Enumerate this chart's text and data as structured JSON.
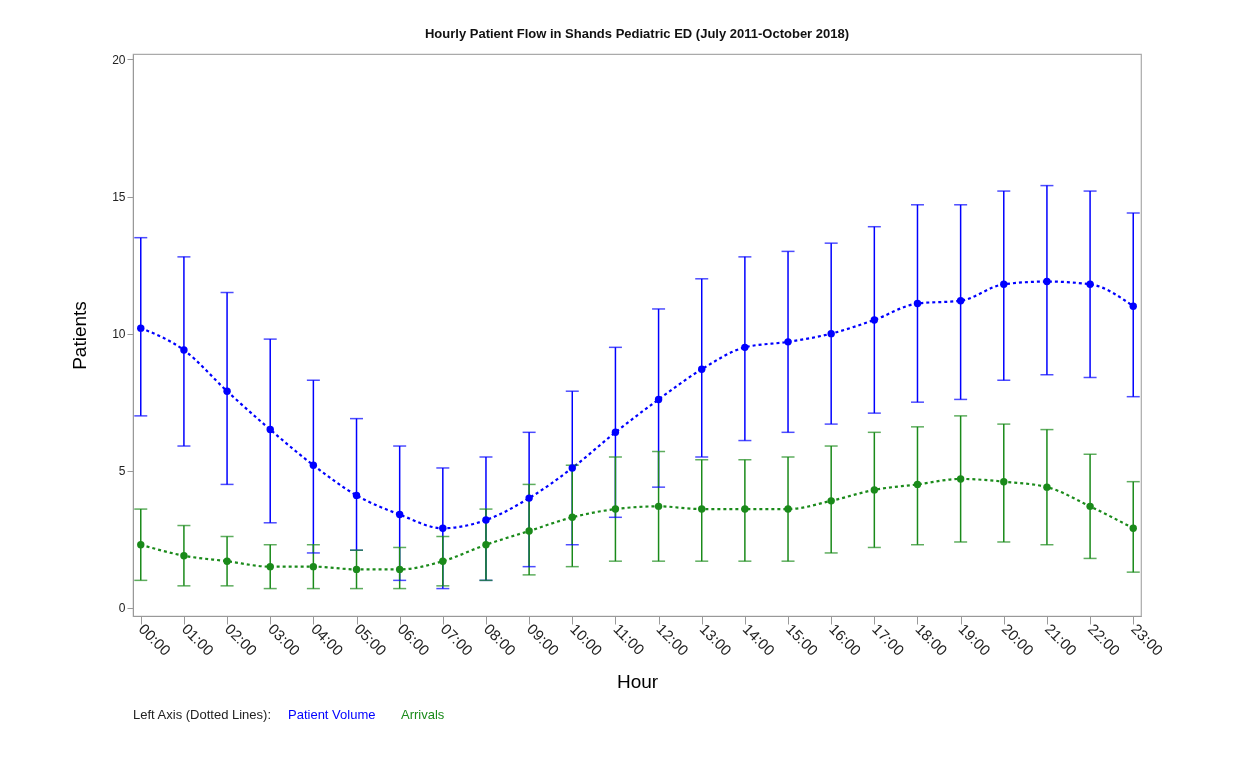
{
  "chart_data": {
    "type": "line",
    "title": "Hourly Patient Flow in Shands Pediatric ED (July 2011-October 2018)",
    "xlabel": "Hour",
    "ylabel": "Patients",
    "legend_title": "Left Axis (Dotted Lines):",
    "categories": [
      "00:00",
      "01:00",
      "02:00",
      "03:00",
      "04:00",
      "05:00",
      "06:00",
      "07:00",
      "08:00",
      "09:00",
      "10:00",
      "11:00",
      "12:00",
      "13:00",
      "14:00",
      "15:00",
      "16:00",
      "17:00",
      "18:00",
      "19:00",
      "20:00",
      "21:00",
      "22:00",
      "23:00"
    ],
    "series": [
      {
        "name": "Patient Volume",
        "color": "#0000ff",
        "values": [
          10.2,
          9.4,
          7.9,
          6.5,
          5.2,
          4.1,
          3.4,
          2.9,
          3.2,
          4.0,
          5.1,
          6.4,
          7.6,
          8.7,
          9.5,
          9.7,
          10.0,
          10.5,
          11.1,
          11.2,
          11.8,
          11.9,
          11.8,
          11.0
        ],
        "errors": [
          [
            7.0,
            13.5
          ],
          [
            5.9,
            12.8
          ],
          [
            4.5,
            11.5
          ],
          [
            3.1,
            9.8
          ],
          [
            2.0,
            8.3
          ],
          [
            2.1,
            6.9
          ],
          [
            1.0,
            5.9
          ],
          [
            0.7,
            5.1
          ],
          [
            1.0,
            5.5
          ],
          [
            1.5,
            6.4
          ],
          [
            2.3,
            7.9
          ],
          [
            3.3,
            9.5
          ],
          [
            4.4,
            10.9
          ],
          [
            5.5,
            12.0
          ],
          [
            6.1,
            12.8
          ],
          [
            6.4,
            13.0
          ],
          [
            6.7,
            13.3
          ],
          [
            7.1,
            13.9
          ],
          [
            7.5,
            14.7
          ],
          [
            7.6,
            14.7
          ],
          [
            8.3,
            15.2
          ],
          [
            8.5,
            15.4
          ],
          [
            8.4,
            15.2
          ],
          [
            7.7,
            14.4
          ]
        ]
      },
      {
        "name": "Arrivals",
        "color": "#1a8a1a",
        "values": [
          2.3,
          1.9,
          1.7,
          1.5,
          1.5,
          1.4,
          1.4,
          1.7,
          2.3,
          2.8,
          3.3,
          3.6,
          3.7,
          3.6,
          3.6,
          3.6,
          3.9,
          4.3,
          4.5,
          4.7,
          4.6,
          4.4,
          3.7,
          2.9
        ],
        "errors": [
          [
            1.0,
            3.6
          ],
          [
            0.8,
            3.0
          ],
          [
            0.8,
            2.6
          ],
          [
            0.7,
            2.3
          ],
          [
            0.7,
            2.3
          ],
          [
            0.7,
            2.1
          ],
          [
            0.7,
            2.2
          ],
          [
            0.8,
            2.6
          ],
          [
            1.0,
            3.6
          ],
          [
            1.2,
            4.5
          ],
          [
            1.5,
            5.2
          ],
          [
            1.7,
            5.5
          ],
          [
            1.7,
            5.7
          ],
          [
            1.7,
            5.4
          ],
          [
            1.7,
            5.4
          ],
          [
            1.7,
            5.5
          ],
          [
            2.0,
            5.9
          ],
          [
            2.2,
            6.4
          ],
          [
            2.3,
            6.6
          ],
          [
            2.4,
            7.0
          ],
          [
            2.4,
            6.7
          ],
          [
            2.3,
            6.5
          ],
          [
            1.8,
            5.6
          ],
          [
            1.3,
            4.6
          ]
        ]
      }
    ],
    "ylim": [
      -0.3,
      20.2
    ],
    "yticks": [
      0,
      5,
      10,
      15,
      20
    ],
    "grid": false,
    "legend": "bottom",
    "marker": "circle",
    "line_style": "dotted"
  }
}
